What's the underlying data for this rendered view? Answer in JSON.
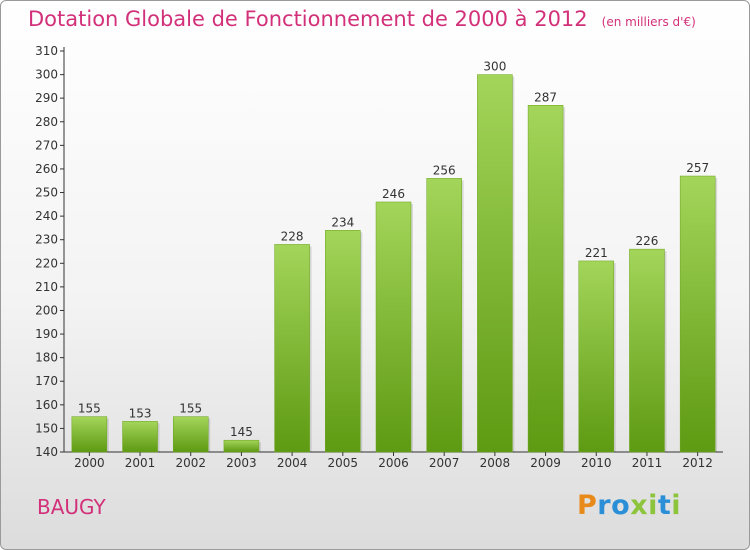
{
  "header": {
    "title": "Dotation Globale de Fonctionnement de 2000 à 2012",
    "unit": "(en milliers d'€)"
  },
  "footer": {
    "commune": "BAUGY",
    "logo_text": "Proxiti"
  },
  "colors": {
    "title": "#d2317a",
    "bar_top": "#a3d55a",
    "bar_bottom": "#5e9a12"
  },
  "chart_data": {
    "type": "bar",
    "title": "Dotation Globale de Fonctionnement de 2000 à 2012",
    "subtitle": "(en milliers d'€)",
    "xlabel": "",
    "ylabel": "",
    "categories": [
      "2000",
      "2001",
      "2002",
      "2003",
      "2004",
      "2005",
      "2006",
      "2007",
      "2008",
      "2009",
      "2010",
      "2011",
      "2012"
    ],
    "values": [
      155,
      153,
      155,
      145,
      228,
      234,
      246,
      256,
      300,
      287,
      221,
      226,
      257
    ],
    "ylim": [
      140,
      310
    ],
    "yticks": [
      140,
      150,
      160,
      170,
      180,
      190,
      200,
      210,
      220,
      230,
      240,
      250,
      260,
      270,
      280,
      290,
      300,
      310
    ],
    "grid": false,
    "data_labels": true
  }
}
